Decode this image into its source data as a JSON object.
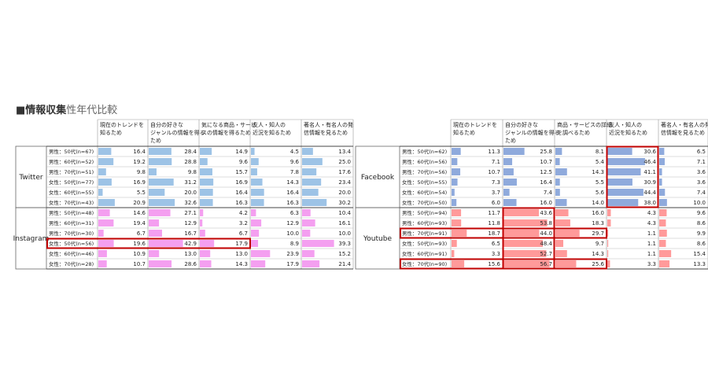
{
  "title": {
    "main": "■情報収集",
    "sub": "性年代比較"
  },
  "chart_data": [
    {
      "type": "table",
      "columns": [
        "現在のトレンドを\n知るため",
        "自分の好きな\nジャンルの情報を得る\nため",
        "気になる商品・サービ\nスの情報を得るため",
        "友人・知人の\n近況を知るため",
        "著名人・有名人の発\n信情報を見るため"
      ],
      "row_labels": [
        "男性：50代(n=67)",
        "男性：60代(n=52)",
        "男性：70代(n=51)",
        "女性：50代(n=77)",
        "女性：60代(n=55)",
        "女性：70代(n=43)",
        "男性：50代(n=48)",
        "男性：60代(n=31)",
        "男性：70代(n=30)",
        "女性：50代(n=56)",
        "女性：60代(n=46)",
        "女性：70代(n=28)"
      ],
      "groups": [
        {
          "name": "Twitter",
          "color": "#9dc3e6",
          "rows": [
            [
              16.4,
              28.4,
              14.9,
              4.5,
              13.4
            ],
            [
              19.2,
              28.8,
              9.6,
              9.6,
              25.0
            ],
            [
              9.8,
              9.8,
              15.7,
              7.8,
              17.6
            ],
            [
              16.9,
              31.2,
              16.9,
              14.3,
              23.4
            ],
            [
              5.5,
              20.0,
              16.4,
              16.4,
              20.0
            ],
            [
              20.9,
              32.6,
              16.3,
              16.3,
              30.2
            ]
          ]
        },
        {
          "name": "Instagram",
          "color": "#f49ff0",
          "rows": [
            [
              14.6,
              27.1,
              4.2,
              6.3,
              10.4
            ],
            [
              19.4,
              12.9,
              3.2,
              12.9,
              16.1
            ],
            [
              6.7,
              16.7,
              6.7,
              10.0,
              10.0
            ],
            [
              19.6,
              42.9,
              17.9,
              8.9,
              39.3
            ],
            [
              10.9,
              13.0,
              13.0,
              23.9,
              15.2
            ],
            [
              10.7,
              28.6,
              14.3,
              17.9,
              21.4
            ]
          ]
        }
      ]
    },
    {
      "type": "table",
      "columns": [
        "現在のトレンドを\n知るため",
        "自分の好きな\nジャンルの情報を得る\nため",
        "商品・サービスの詳細\nを調べるため",
        "友人・知人の\n近況を知るため",
        "著名人・有名人の発\n信情報を見るため"
      ],
      "row_labels": [
        "男性：50代(n=62)",
        "男性：60代(n=56)",
        "男性：70代(n=56)",
        "女性：50代(n=55)",
        "女性：60代(n=54)",
        "女性：70代(n=50)",
        "男性：50代(n=94)",
        "男性：60代(n=93)",
        "男性：70代(n=91)",
        "女性：50代(n=93)",
        "女性：60代(n=91)",
        "女性：70代(n=90)"
      ],
      "groups": [
        {
          "name": "Facebook",
          "color": "#8faadc",
          "rows": [
            [
              11.3,
              25.8,
              8.1,
              30.6,
              6.5
            ],
            [
              7.1,
              10.7,
              5.4,
              46.4,
              7.1
            ],
            [
              10.7,
              12.5,
              14.3,
              41.1,
              3.6
            ],
            [
              7.3,
              16.4,
              5.5,
              30.9,
              3.6
            ],
            [
              3.7,
              7.4,
              5.6,
              44.4,
              7.4
            ],
            [
              6.0,
              16.0,
              14.0,
              38.0,
              10.0
            ]
          ]
        },
        {
          "name": "Youtube",
          "color": "#ff9a9a",
          "rows": [
            [
              11.7,
              43.6,
              16.0,
              4.3,
              9.6
            ],
            [
              11.8,
              53.8,
              18.3,
              4.3,
              8.6
            ],
            [
              18.7,
              44.0,
              29.7,
              1.1,
              9.9
            ],
            [
              6.5,
              48.4,
              9.7,
              1.1,
              8.6
            ],
            [
              3.3,
              52.7,
              14.3,
              1.1,
              15.4
            ],
            [
              15.6,
              56.7,
              25.6,
              3.3,
              13.3
            ]
          ]
        }
      ]
    }
  ]
}
